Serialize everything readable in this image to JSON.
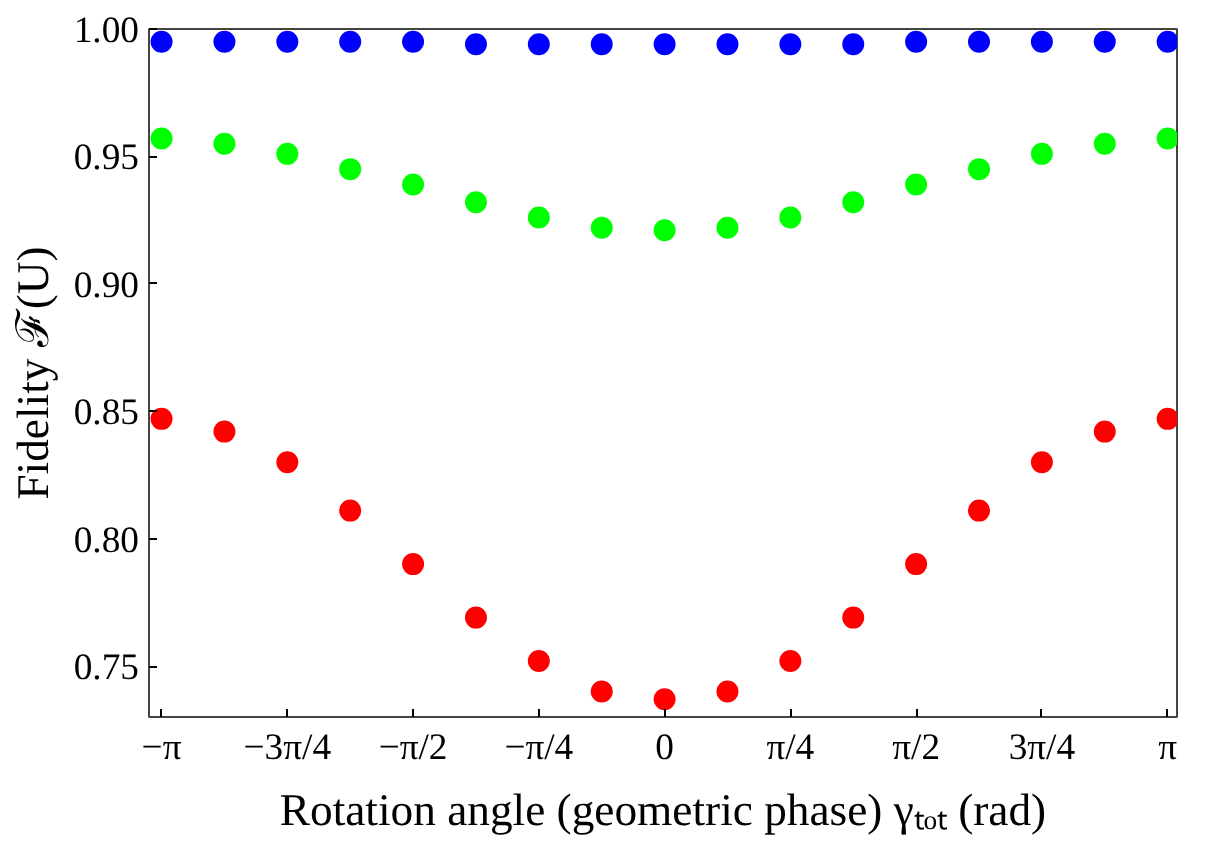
{
  "chart_data": {
    "type": "scatter",
    "xlabel": "Rotation angle (geometric phase) γₜₒₜ (rad)",
    "ylabel": "Fidelity ℱ(U)",
    "x": [
      -3.1416,
      -2.7489,
      -2.3562,
      -1.9635,
      -1.5708,
      -1.1781,
      -0.7854,
      -0.3927,
      0,
      0.3927,
      0.7854,
      1.1781,
      1.5708,
      1.9635,
      2.3562,
      2.7489,
      3.1416
    ],
    "series": [
      {
        "color": "#0000ff",
        "values": [
          0.995,
          0.995,
          0.995,
          0.995,
          0.995,
          0.994,
          0.994,
          0.994,
          0.994,
          0.994,
          0.994,
          0.994,
          0.995,
          0.995,
          0.995,
          0.995,
          0.995
        ]
      },
      {
        "color": "#00ff00",
        "values": [
          0.957,
          0.955,
          0.951,
          0.945,
          0.939,
          0.932,
          0.926,
          0.922,
          0.921,
          0.922,
          0.926,
          0.932,
          0.939,
          0.945,
          0.951,
          0.955,
          0.957
        ]
      },
      {
        "color": "#ff0000",
        "values": [
          0.847,
          0.842,
          0.83,
          0.811,
          0.79,
          0.769,
          0.752,
          0.74,
          0.737,
          0.74,
          0.752,
          0.769,
          0.79,
          0.811,
          0.83,
          0.842,
          0.847
        ]
      }
    ],
    "xlim": [
      -3.22,
      3.2
    ],
    "ylim": [
      0.73,
      1.0
    ],
    "xticks": [
      {
        "value": -3.1416,
        "label": "−π"
      },
      {
        "value": -2.3562,
        "label": "−3π/4"
      },
      {
        "value": -1.5708,
        "label": "−π/2"
      },
      {
        "value": -0.7854,
        "label": "−π/4"
      },
      0,
      {
        "value": 0.7854,
        "label": "π/4"
      },
      {
        "value": 1.5708,
        "label": "π/2"
      },
      {
        "value": 2.3562,
        "label": "3π/4"
      },
      {
        "value": 3.1416,
        "label": "π"
      }
    ],
    "yticks": [
      0.75,
      {
        "value": 0.8,
        "label": "0.80"
      },
      0.85,
      {
        "value": 0.9,
        "label": "0.90"
      },
      0.95,
      {
        "value": 1.0,
        "label": "1.00"
      }
    ],
    "grid": false,
    "marker": "circle"
  }
}
